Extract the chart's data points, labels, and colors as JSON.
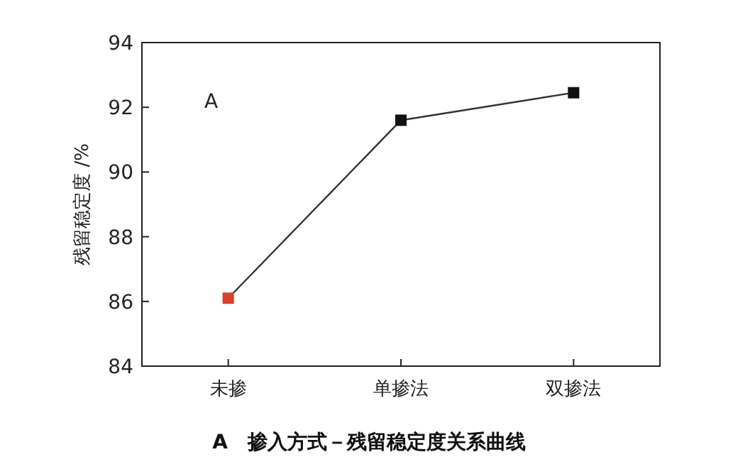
{
  "chart_data": {
    "type": "line",
    "title": "A　掺入方式－残留稳定度关系曲线",
    "ylabel": "残留稳定度 /%",
    "annotations": [
      "A"
    ],
    "categories": [
      "未掺",
      "单掺法",
      "双掺法"
    ],
    "series": [
      {
        "color": "#333333",
        "values": [
          86.1,
          91.6,
          92.45
        ]
      }
    ],
    "colors": [
      "#d9412e",
      "#111111",
      "#111111"
    ],
    "ylim": [
      84,
      94
    ],
    "yticks": [
      84,
      86,
      88,
      90,
      92,
      94
    ],
    "marker": "square",
    "line_style": "solid",
    "grid": false
  }
}
